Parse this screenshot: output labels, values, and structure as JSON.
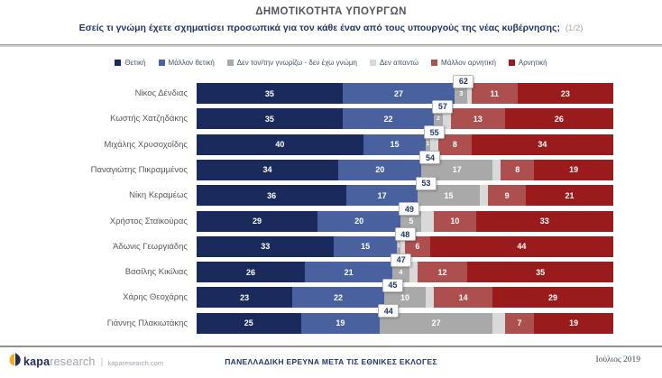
{
  "header": {
    "title": "ΔΗΜΟΤΙΚΟΤΗΤΑ ΥΠΟΥΡΓΩΝ",
    "subtitle": "Εσείς τι γνώμη έχετε σχηματίσει προσωπικά για τον κάθε έναν από τους υπουργούς της νέας κυβέρνησης;",
    "subtitle_suffix": "(1/2)"
  },
  "chart_data": {
    "type": "bar",
    "variant": "horizontal-stacked",
    "stack_total": 100,
    "legend_position": "top-center",
    "legend": [
      {
        "key": "positive",
        "label": "Θετική",
        "color": "#1b2a5c"
      },
      {
        "key": "rather_positive",
        "label": "Μάλλον θετική",
        "color": "#4a61a0"
      },
      {
        "key": "dont_know",
        "label": "Δεν τον/την γνωρίζω - δεν έχω γνώμη",
        "color": "#a9a9a9"
      },
      {
        "key": "no_answer",
        "label": "Δεν απαντώ",
        "color": "#d9d9d9"
      },
      {
        "key": "rather_negative",
        "label": "Μάλλον αρνητική",
        "color": "#ae4f4f"
      },
      {
        "key": "negative",
        "label": "Αρνητική",
        "color": "#991b1b"
      }
    ],
    "categories": [
      "Νίκος Δένδιας",
      "Κωστής Χατζηδάκης",
      "Μιχάλης Χρυσοχοΐδης",
      "Παναγιώτης Πικραμμένος",
      "Νίκη Κεραμέως",
      "Χρήστος Σταϊκούρας",
      "Άδωνις Γεωργιάδης",
      "Βασίλης Κικίλιας",
      "Χάρης Θεοχάρης",
      "Γιάννης Πλακιωτάκης"
    ],
    "series": [
      {
        "name": "Θετική",
        "values": [
          35,
          35,
          40,
          34,
          36,
          29,
          33,
          26,
          23,
          25
        ]
      },
      {
        "name": "Μάλλον θετική",
        "values": [
          27,
          22,
          15,
          20,
          17,
          20,
          15,
          21,
          22,
          19
        ]
      },
      {
        "name": "Δεν τον/την γνωρίζω - δεν έχω γνώμη",
        "values": [
          3,
          2,
          1,
          17,
          15,
          5,
          1,
          4,
          10,
          27
        ]
      },
      {
        "name": "Δεν απαντώ",
        "labels_hidden": true,
        "values": [
          1,
          2,
          2,
          2,
          2,
          3,
          1,
          2,
          2,
          3
        ]
      },
      {
        "name": "Μάλλον αρνητική",
        "values": [
          11,
          13,
          8,
          8,
          9,
          10,
          6,
          12,
          14,
          7
        ]
      },
      {
        "name": "Αρνητική",
        "values": [
          23,
          26,
          34,
          19,
          21,
          33,
          44,
          35,
          29,
          19
        ]
      }
    ],
    "positive_total_labels": [
      62,
      57,
      55,
      54,
      53,
      49,
      48,
      47,
      45,
      44
    ]
  },
  "footer": {
    "logo_bold": "kapa",
    "logo_light": "research",
    "logo_separator": "|",
    "logo_domain": "kaparesearch.com",
    "center_text": "ΠΑΝΕΛΛΑΔΙΚΗ ΕΡΕΥΝΑ ΜΕΤΑ ΤΙΣ ΕΘΝΙΚΕΣ ΕΚΛΟΓΕΣ",
    "date_text": "Ιούλιος 2019"
  }
}
